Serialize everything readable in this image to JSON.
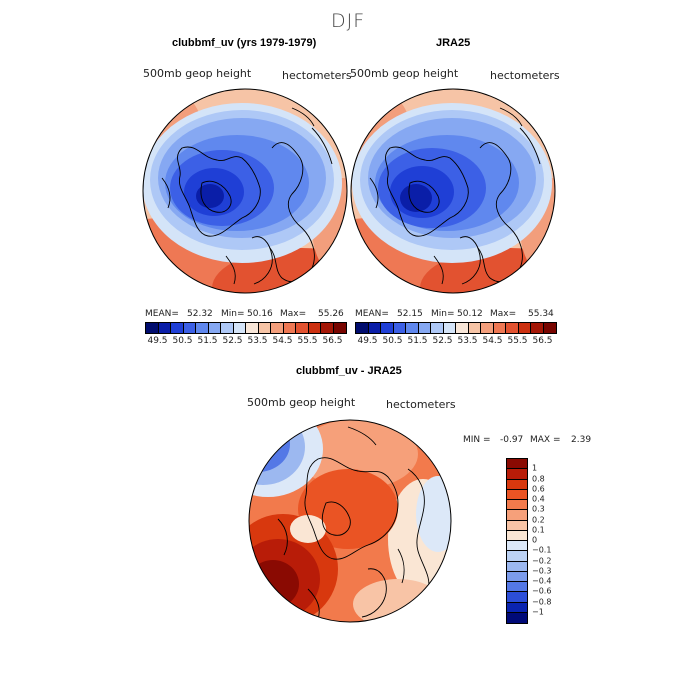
{
  "figure": {
    "title": "DJF"
  },
  "panels": [
    {
      "title": "clubbmf_uv (yrs 1979-1979)",
      "variable": "500mb geop height",
      "units": "hectometers",
      "stats": {
        "mean_label": "MEAN=",
        "mean": "52.32",
        "min_label": "Min=",
        "min": "50.16",
        "max_label": "Max=",
        "max": "55.26"
      }
    },
    {
      "title": "JRA25",
      "variable": "500mb geop height",
      "units": "hectometers",
      "stats": {
        "mean_label": "MEAN=",
        "mean": "52.15",
        "min_label": "Min=",
        "min": "50.12",
        "max_label": "Max=",
        "max": "55.34"
      }
    },
    {
      "title": "clubbmf_uv - JRA25",
      "variable": "500mb geop height",
      "units": "hectometers",
      "stats": {
        "min_label": "MIN =",
        "min": "-0.97",
        "max_label": "MAX =",
        "max": "2.39"
      }
    }
  ],
  "colorbar_top": {
    "ticks": [
      "49.5",
      "50.5",
      "51.5",
      "52.5",
      "53.5",
      "54.5",
      "55.5",
      "56.5"
    ],
    "colors": [
      "#000c6e",
      "#0a1ea8",
      "#1f3fd6",
      "#3c60e6",
      "#6088ee",
      "#86a8f2",
      "#aec8f6",
      "#d4e4f8",
      "#f8e6d8",
      "#f6c4a6",
      "#f29e7c",
      "#ee7854",
      "#e25230",
      "#cc3010",
      "#a31606",
      "#780500"
    ]
  },
  "colorbar_diff": {
    "ticks": [
      "1",
      "0.8",
      "0.6",
      "0.4",
      "0.3",
      "0.2",
      "0.1",
      "0",
      "−0.1",
      "−0.2",
      "−0.3",
      "−0.4",
      "−0.6",
      "−0.8",
      "−1"
    ],
    "colors": [
      "#8a0a02",
      "#b81c08",
      "#d8380e",
      "#ea5424",
      "#f27a4c",
      "#f6a07a",
      "#f8c4a6",
      "#fae6d4",
      "#dce8f8",
      "#bcd2f4",
      "#9cb8f0",
      "#7c9cec",
      "#5478e6",
      "#2c4ed8",
      "#0a24b0",
      "#000a78"
    ]
  }
}
